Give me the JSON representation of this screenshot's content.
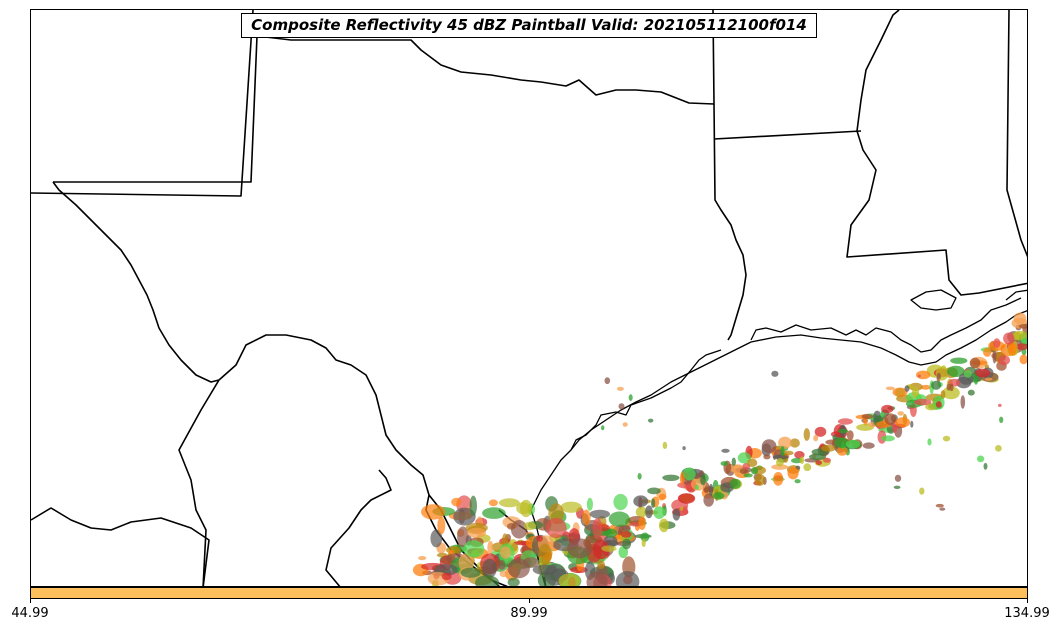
{
  "title": "Composite Reflectivity 45 dBZ Paintball Valid: 202105112100f014",
  "colorbar": {
    "color": "#fcbf5c",
    "ticks": [
      "44.99",
      "89.99",
      "134.99"
    ]
  },
  "member_colors": [
    "#d62728",
    "#ff7f0e",
    "#2ca02c",
    "#8c564b",
    "#b8860b",
    "#4fd64f",
    "#bcbd22",
    "#f5a050",
    "#5a5a5a",
    "#3a7a3a",
    "#e44d4d",
    "#a0522d"
  ]
}
